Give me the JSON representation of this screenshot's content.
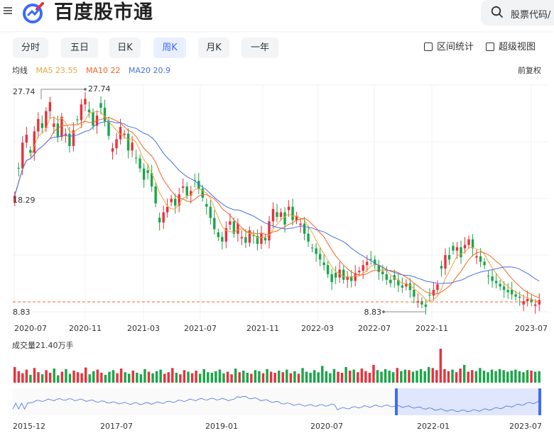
{
  "header": {
    "brand": "百度股市通",
    "search_placeholder": "股票代码/"
  },
  "tabs": [
    {
      "label": "分时",
      "active": false
    },
    {
      "label": "五日",
      "active": false
    },
    {
      "label": "日K",
      "active": false
    },
    {
      "label": "周K",
      "active": true
    },
    {
      "label": "月K",
      "active": false
    },
    {
      "label": "一年",
      "active": false
    }
  ],
  "tools": {
    "interval_stats": "区间统计",
    "super_view": "超级视图"
  },
  "ma": {
    "label": "均线",
    "ma5": "MA5 23.55",
    "ma10": "MA10 22",
    "ma20": "MA20 20.9",
    "adjust": "前复权"
  },
  "colors": {
    "up": "#e8313c",
    "down": "#1aa64a",
    "ma5": "#f2a43a",
    "ma10": "#f26522",
    "ma20": "#4a6fe3",
    "accent": "#3e6bf5"
  },
  "chart_data": {
    "type": "candlestick",
    "period": "weekly",
    "y_axis_labels": [
      "27.74",
      "18.29",
      "8.83"
    ],
    "ylim": [
      8.83,
      27.74
    ],
    "max": {
      "value": 27.74,
      "label": "27.74"
    },
    "min": {
      "value": 8.83,
      "label": "8.83"
    },
    "x_tick_labels": [
      "2020-07",
      "2020-11",
      "2021-03",
      "2021-07",
      "2021-11",
      "2022-03",
      "2022-07",
      "2022-11",
      "2023-07"
    ],
    "closes": [
      18.8,
      21.2,
      23.5,
      24.2,
      22.6,
      24.5,
      25.6,
      24.8,
      26.3,
      27.1,
      25.2,
      24.0,
      25.8,
      24.3,
      23.2,
      24.6,
      25.5,
      26.9,
      27.4,
      26.2,
      25.0,
      25.9,
      26.6,
      25.4,
      24.1,
      23.0,
      23.8,
      24.9,
      24.3,
      22.8,
      23.5,
      22.1,
      21.2,
      20.2,
      20.8,
      19.6,
      18.1,
      16.4,
      17.3,
      17.8,
      18.5,
      17.9,
      18.9,
      19.6,
      18.8,
      19.2,
      20.1,
      19.4,
      18.6,
      17.8,
      16.8,
      15.8,
      15.1,
      14.7,
      15.9,
      16.5,
      15.4,
      16.3,
      15.1,
      14.6,
      15.7,
      15.2,
      14.5,
      15.4,
      14.8,
      16.5,
      17.6,
      16.9,
      17.3,
      16.2,
      17.8,
      16.6,
      17.0,
      16.3,
      15.4,
      14.7,
      14.1,
      13.6,
      13.1,
      12.6,
      11.8,
      11.1,
      11.5,
      12.2,
      11.3,
      11.6,
      11.2,
      11.9,
      12.1,
      12.6,
      12.9,
      13.1,
      12.6,
      12.0,
      11.8,
      11.3,
      11.0,
      11.3,
      10.8,
      10.6,
      11.0,
      10.4,
      9.8,
      9.4,
      9.1,
      8.9,
      9.9,
      10.4,
      10.9,
      12.3,
      13.5,
      13.1,
      13.9,
      14.2,
      13.3,
      14.4,
      14.9,
      14.1,
      13.4,
      12.9,
      12.6,
      11.6,
      11.2,
      11.0,
      10.7,
      10.4,
      10.2,
      10.0,
      9.8,
      9.7,
      9.4,
      9.6,
      9.3,
      9.1,
      9.5
    ],
    "volumes": [
      30,
      22,
      18,
      25,
      15,
      28,
      20,
      16,
      24,
      19,
      27,
      14,
      21,
      26,
      17,
      23,
      20,
      18,
      29,
      16,
      22,
      25,
      19,
      15,
      21,
      24,
      18,
      27,
      20,
      17,
      23,
      19,
      16,
      26,
      21,
      18,
      22,
      25,
      17,
      20,
      28,
      19,
      16,
      24,
      21,
      18,
      23,
      17,
      26,
      20,
      19,
      22,
      25,
      18,
      21,
      16,
      27,
      20,
      23,
      19,
      17,
      24,
      22,
      18,
      26,
      21,
      19,
      23,
      20,
      25,
      18,
      22,
      17,
      28,
      21,
      19,
      24,
      20,
      32,
      22,
      18,
      26,
      21,
      19,
      30,
      23,
      25,
      20,
      27,
      22,
      19,
      34,
      24,
      21,
      26,
      23,
      20,
      28,
      22,
      25,
      24,
      21,
      23,
      26,
      22,
      30,
      28,
      24,
      65,
      26,
      22,
      25,
      20,
      27,
      34,
      21,
      24,
      22,
      28,
      23,
      20,
      25,
      22,
      26,
      24,
      21,
      23,
      25,
      22,
      20,
      24,
      23,
      21,
      22
    ],
    "volume_label": "成交量21.40万手",
    "overview_x_labels": [
      "2015-12",
      "2017-07",
      "2019-01",
      "2020-07",
      "2022-01",
      "2023-07"
    ]
  }
}
